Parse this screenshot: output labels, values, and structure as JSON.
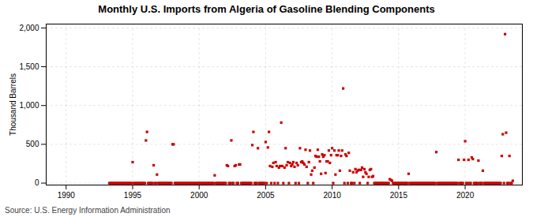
{
  "chart_data": {
    "type": "scatter",
    "title": "Monthly U.S. Imports from Algeria of Gasoline Blending Components",
    "ylabel": "Thousand Barrels",
    "source": "Source: U.S. Energy Information Administration",
    "color": "#cc0000",
    "marker": "square",
    "grid": true,
    "xlim": [
      1988.5,
      2024.3
    ],
    "xticks": [
      1990,
      1995,
      2000,
      2005,
      2010,
      2015,
      2020
    ],
    "ylim": [
      -25,
      2050
    ],
    "yticks": [
      0,
      500,
      {
        "value": 1000,
        "label": "1,000"
      },
      {
        "value": 1500,
        "label": "1,500"
      },
      {
        "value": 2000,
        "label": "2,000"
      }
    ],
    "x": [
      1993.25,
      1993.33,
      1993.42,
      1993.5,
      1993.58,
      1993.67,
      1993.75,
      1993.83,
      1993.92,
      1994.0,
      1994.08,
      1994.17,
      1994.25,
      1994.33,
      1994.42,
      1994.5,
      1994.58,
      1994.67,
      1994.75,
      1994.83,
      1994.92,
      1995.0,
      1995.08,
      1995.17,
      1995.25,
      1995.33,
      1995.42,
      1995.5,
      1995.58,
      1995.67,
      1995.75,
      1995.83,
      1995.92,
      1996.0,
      1996.08,
      1996.17,
      1996.25,
      1996.33,
      1996.42,
      1996.5,
      1996.58,
      1996.67,
      1996.75,
      1996.83,
      1996.92,
      1997.0,
      1997.08,
      1997.17,
      1997.25,
      1997.33,
      1997.42,
      1997.5,
      1997.58,
      1997.67,
      1997.75,
      1997.83,
      1997.92,
      1998.0,
      1998.08,
      1998.17,
      1998.25,
      1998.33,
      1998.42,
      1998.5,
      1998.58,
      1998.67,
      1998.75,
      1998.83,
      1998.92,
      1999.0,
      1999.08,
      1999.17,
      1999.25,
      1999.33,
      1999.42,
      1999.5,
      1999.58,
      1999.67,
      1999.75,
      1999.83,
      1999.92,
      2000.0,
      2000.08,
      2000.17,
      2000.25,
      2000.33,
      2000.42,
      2000.5,
      2000.58,
      2000.67,
      2000.75,
      2000.83,
      2000.92,
      2001.0,
      2001.08,
      2001.17,
      2001.25,
      2001.33,
      2001.42,
      2001.5,
      2001.58,
      2001.67,
      2001.75,
      2001.83,
      2001.92,
      2002.0,
      2002.08,
      2002.17,
      2002.25,
      2002.33,
      2002.42,
      2002.5,
      2002.58,
      2002.67,
      2002.75,
      2002.83,
      2002.92,
      2003.0,
      2003.08,
      2003.17,
      2003.25,
      2003.33,
      2003.42,
      2003.5,
      2003.58,
      2003.67,
      2003.75,
      2003.83,
      2003.92,
      2004.0,
      2004.08,
      2004.17,
      2004.25,
      2004.33,
      2004.42,
      2004.5,
      2004.58,
      2004.67,
      2004.75,
      2004.83,
      2004.92,
      2005.0,
      2005.08,
      2005.17,
      2005.25,
      2005.33,
      2005.42,
      2005.5,
      2005.58,
      2005.67,
      2005.75,
      2005.83,
      2005.92,
      2006.0,
      2006.08,
      2006.17,
      2006.25,
      2006.33,
      2006.42,
      2006.5,
      2006.58,
      2006.67,
      2006.75,
      2006.83,
      2006.92,
      2007.0,
      2007.08,
      2007.17,
      2007.25,
      2007.33,
      2007.42,
      2007.5,
      2007.58,
      2007.67,
      2007.75,
      2007.83,
      2007.92,
      2008.0,
      2008.08,
      2008.17,
      2008.25,
      2008.33,
      2008.42,
      2008.5,
      2008.58,
      2008.67,
      2008.75,
      2008.83,
      2008.92,
      2009.0,
      2009.08,
      2009.17,
      2009.25,
      2009.33,
      2009.42,
      2009.5,
      2009.58,
      2009.67,
      2009.75,
      2009.83,
      2009.92,
      2010.0,
      2010.08,
      2010.17,
      2010.25,
      2010.33,
      2010.42,
      2010.5,
      2010.58,
      2010.67,
      2010.75,
      2010.83,
      2010.92,
      2011.0,
      2011.08,
      2011.17,
      2011.25,
      2011.33,
      2011.42,
      2011.5,
      2011.58,
      2011.67,
      2011.75,
      2011.83,
      2011.92,
      2012.0,
      2012.08,
      2012.17,
      2012.25,
      2012.33,
      2012.42,
      2012.5,
      2012.58,
      2012.67,
      2012.75,
      2012.83,
      2012.92,
      2013.0,
      2013.08,
      2013.17,
      2013.25,
      2013.33,
      2013.42,
      2013.5,
      2013.58,
      2013.67,
      2013.75,
      2013.83,
      2013.92,
      2014.0,
      2014.08,
      2014.17,
      2014.25,
      2014.33,
      2014.42,
      2014.5,
      2014.58,
      2014.67,
      2014.75,
      2014.83,
      2014.92,
      2015.0,
      2015.08,
      2015.17,
      2015.25,
      2015.33,
      2015.42,
      2015.5,
      2015.58,
      2015.67,
      2015.75,
      2015.83,
      2015.92,
      2016.0,
      2016.08,
      2016.17,
      2016.25,
      2016.33,
      2016.42,
      2016.5,
      2016.58,
      2016.67,
      2016.75,
      2016.83,
      2016.92,
      2017.0,
      2017.08,
      2017.17,
      2017.25,
      2017.33,
      2017.42,
      2017.5,
      2017.58,
      2017.67,
      2017.75,
      2017.83,
      2017.92,
      2018.0,
      2018.08,
      2018.17,
      2018.25,
      2018.33,
      2018.42,
      2018.5,
      2018.58,
      2018.67,
      2018.75,
      2018.83,
      2018.92,
      2019.0,
      2019.08,
      2019.17,
      2019.25,
      2019.33,
      2019.42,
      2019.5,
      2019.58,
      2019.67,
      2019.75,
      2019.83,
      2019.92,
      2020.0,
      2020.08,
      2020.17,
      2020.25,
      2020.33,
      2020.42,
      2020.5,
      2020.58,
      2020.67,
      2020.75,
      2020.83,
      2020.92,
      2021.0,
      2021.08,
      2021.17,
      2021.25,
      2021.33,
      2021.42,
      2021.5,
      2021.58,
      2021.67,
      2021.75,
      2021.83,
      2021.92,
      2022.0,
      2022.08,
      2022.17,
      2022.25,
      2022.33,
      2022.42,
      2022.5,
      2022.58,
      2022.67,
      2022.75,
      2022.83,
      2022.92,
      2023.0,
      2023.08,
      2023.17,
      2023.25,
      2023.33,
      2023.42,
      2023.5,
      2023.58
    ],
    "values": [
      0,
      0,
      0,
      0,
      0,
      0,
      0,
      0,
      0,
      0,
      0,
      0,
      0,
      0,
      0,
      0,
      0,
      0,
      0,
      0,
      0,
      270,
      0,
      0,
      0,
      0,
      0,
      0,
      0,
      0,
      0,
      0,
      0,
      550,
      660,
      0,
      0,
      0,
      0,
      0,
      230,
      0,
      0,
      110,
      0,
      0,
      0,
      0,
      0,
      0,
      0,
      0,
      0,
      0,
      0,
      0,
      0,
      500,
      500,
      0,
      0,
      0,
      0,
      0,
      0,
      0,
      0,
      0,
      0,
      0,
      0,
      0,
      0,
      0,
      0,
      0,
      0,
      0,
      0,
      0,
      0,
      0,
      0,
      0,
      0,
      0,
      0,
      0,
      0,
      0,
      0,
      0,
      0,
      0,
      0,
      100,
      0,
      0,
      0,
      0,
      0,
      0,
      0,
      0,
      0,
      0,
      230,
      220,
      0,
      0,
      550,
      0,
      0,
      220,
      230,
      0,
      0,
      240,
      240,
      0,
      0,
      0,
      0,
      0,
      0,
      0,
      0,
      0,
      0,
      490,
      660,
      0,
      0,
      0,
      450,
      0,
      0,
      0,
      0,
      0,
      0,
      530,
      0,
      460,
      660,
      220,
      0,
      210,
      260,
      0,
      270,
      220,
      0,
      200,
      220,
      780,
      220,
      0,
      200,
      450,
      230,
      270,
      0,
      260,
      220,
      240,
      270,
      210,
      0,
      260,
      230,
      0,
      450,
      270,
      280,
      260,
      240,
      430,
      210,
      0,
      270,
      420,
      110,
      160,
      0,
      200,
      350,
      340,
      430,
      340,
      280,
      120,
      370,
      340,
      360,
      130,
      280,
      280,
      420,
      260,
      360,
      450,
      0,
      420,
      110,
      360,
      360,
      420,
      160,
      350,
      420,
      1220,
      0,
      370,
      350,
      0,
      390,
      160,
      0,
      0,
      140,
      0,
      180,
      140,
      160,
      170,
      0,
      170,
      200,
      80,
      180,
      140,
      120,
      0,
      80,
      170,
      180,
      80,
      90,
      0,
      0,
      0,
      0,
      0,
      0,
      0,
      0,
      0,
      0,
      0,
      0,
      0,
      0,
      50,
      40,
      30,
      0,
      0,
      0,
      0,
      0,
      0,
      0,
      0,
      0,
      0,
      0,
      0,
      0,
      0,
      120,
      0,
      0,
      0,
      0,
      0,
      0,
      0,
      0,
      0,
      0,
      0,
      0,
      0,
      0,
      0,
      0,
      0,
      0,
      0,
      0,
      0,
      0,
      0,
      0,
      400,
      0,
      0,
      0,
      0,
      0,
      0,
      0,
      0,
      0,
      0,
      0,
      0,
      0,
      0,
      0,
      0,
      0,
      0,
      0,
      300,
      0,
      0,
      0,
      0,
      300,
      540,
      0,
      0,
      300,
      0,
      0,
      330,
      310,
      0,
      0,
      0,
      0,
      290,
      0,
      0,
      0,
      160,
      0,
      0,
      0,
      0,
      0,
      0,
      0,
      0,
      0,
      0,
      0,
      0,
      0,
      0,
      0,
      0,
      350,
      630,
      0,
      1920,
      650,
      0,
      0,
      350,
      0,
      0,
      30
    ]
  }
}
